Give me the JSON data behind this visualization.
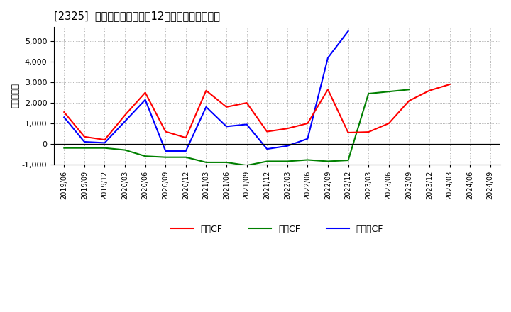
{
  "title": "[2325]  キャッシュフローの12か月移動合計の推移",
  "ylabel": "（百万円）",
  "x_labels": [
    "2019/06",
    "2019/09",
    "2019/12",
    "2020/03",
    "2020/06",
    "2020/09",
    "2020/12",
    "2021/03",
    "2021/06",
    "2021/09",
    "2021/12",
    "2022/03",
    "2022/06",
    "2022/09",
    "2022/12",
    "2023/03",
    "2023/06",
    "2023/09",
    "2023/12",
    "2024/03",
    "2024/06",
    "2024/09"
  ],
  "eigyo_x": [
    0,
    1,
    2,
    3,
    4,
    5,
    6,
    7,
    8,
    9,
    10,
    11,
    12,
    13,
    14,
    15,
    16,
    17,
    18,
    19,
    20
  ],
  "eigyo_y": [
    1550,
    350,
    200,
    1400,
    2500,
    600,
    300,
    2600,
    1800,
    2000,
    600,
    750,
    1000,
    2650,
    550,
    580,
    1000,
    2100,
    2600,
    2900,
    null
  ],
  "toshi_x": [
    0,
    1,
    2,
    3,
    4,
    5,
    6,
    7,
    8,
    9,
    10,
    11,
    12,
    13,
    14,
    15,
    16,
    17
  ],
  "toshi_y": [
    -200,
    -200,
    -200,
    -300,
    -600,
    -650,
    -650,
    -900,
    -900,
    -1050,
    -850,
    -850,
    -780,
    -850,
    -800,
    2450,
    2550,
    2650
  ],
  "free_x": [
    0,
    1,
    2,
    3,
    4,
    5,
    6,
    7,
    8,
    9,
    10,
    11,
    12,
    13,
    14
  ],
  "free_y": [
    1300,
    100,
    50,
    1100,
    2150,
    -350,
    -350,
    1800,
    850,
    950,
    -250,
    -100,
    250,
    4200,
    5500
  ],
  "color_eigyo": "#ff0000",
  "color_toshi": "#008000",
  "color_free": "#0000ff",
  "ylim": [
    -1000,
    5700
  ],
  "yticks": [
    -1000,
    0,
    1000,
    2000,
    3000,
    4000,
    5000
  ],
  "background_color": "#ffffff",
  "grid_color": "#999999",
  "legend_eigyo": "営業CF",
  "legend_toshi": "投資CF",
  "legend_free": "フリーCF"
}
